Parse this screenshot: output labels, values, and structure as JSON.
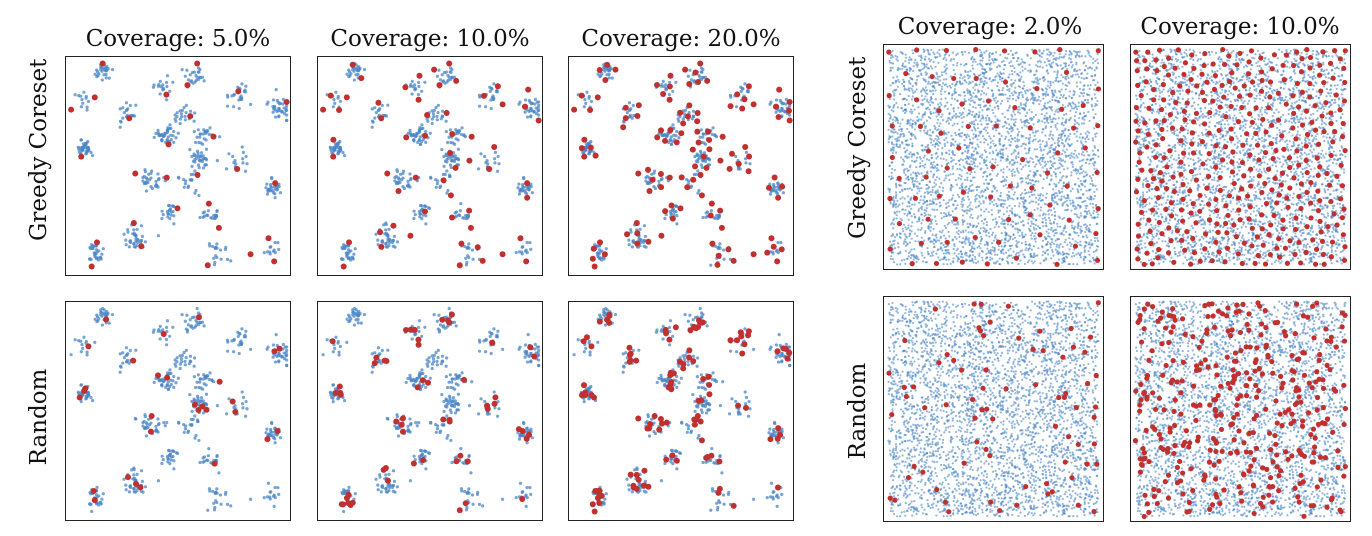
{
  "colors": {
    "all_points": "#4a86c5",
    "selected_points": "#c0302f"
  },
  "chart_data": [
    {
      "type": "scatter",
      "group": "clustered",
      "columns": [
        {
          "title": "Coverage: 5.0%",
          "coverage": 0.05
        },
        {
          "title": "Coverage: 10.0%",
          "coverage": 0.1
        },
        {
          "title": "Coverage: 20.0%",
          "coverage": 0.2
        }
      ],
      "rows": [
        {
          "label": "Greedy Coreset",
          "method": "greedy"
        },
        {
          "label": "Random",
          "method": "random"
        }
      ],
      "series": [
        {
          "role": "all points",
          "color": "#4a86c5"
        },
        {
          "role": "selected points",
          "color": "#c0302f"
        }
      ],
      "xlim": [
        0,
        1
      ],
      "ylim": [
        0,
        1
      ],
      "grid": false,
      "ticks": false,
      "cluster_centers": [
        [
          0.17,
          0.94
        ],
        [
          0.07,
          0.79
        ],
        [
          0.44,
          0.86
        ],
        [
          0.58,
          0.91
        ],
        [
          0.77,
          0.82
        ],
        [
          0.96,
          0.77
        ],
        [
          0.27,
          0.74
        ],
        [
          0.08,
          0.58
        ],
        [
          0.45,
          0.64
        ],
        [
          0.63,
          0.64
        ],
        [
          0.59,
          0.53
        ],
        [
          0.76,
          0.53
        ],
        [
          0.38,
          0.44
        ],
        [
          0.55,
          0.43
        ],
        [
          0.92,
          0.4
        ],
        [
          0.46,
          0.28
        ],
        [
          0.65,
          0.28
        ],
        [
          0.32,
          0.17
        ],
        [
          0.13,
          0.1
        ],
        [
          0.68,
          0.09
        ],
        [
          0.91,
          0.11
        ],
        [
          0.52,
          0.73
        ]
      ]
    },
    {
      "type": "scatter",
      "group": "uniform",
      "columns": [
        {
          "title": "Coverage: 2.0%",
          "coverage": 0.02
        },
        {
          "title": "Coverage: 10.0%",
          "coverage": 0.1
        }
      ],
      "rows": [
        {
          "label": "Greedy Coreset",
          "method": "greedy"
        },
        {
          "label": "Random",
          "method": "random"
        }
      ],
      "series": [
        {
          "role": "all points",
          "color": "#4a86c5"
        },
        {
          "role": "selected points",
          "color": "#c0302f"
        }
      ],
      "xlim": [
        0,
        1
      ],
      "ylim": [
        0,
        1
      ],
      "grid": false,
      "ticks": false
    }
  ]
}
